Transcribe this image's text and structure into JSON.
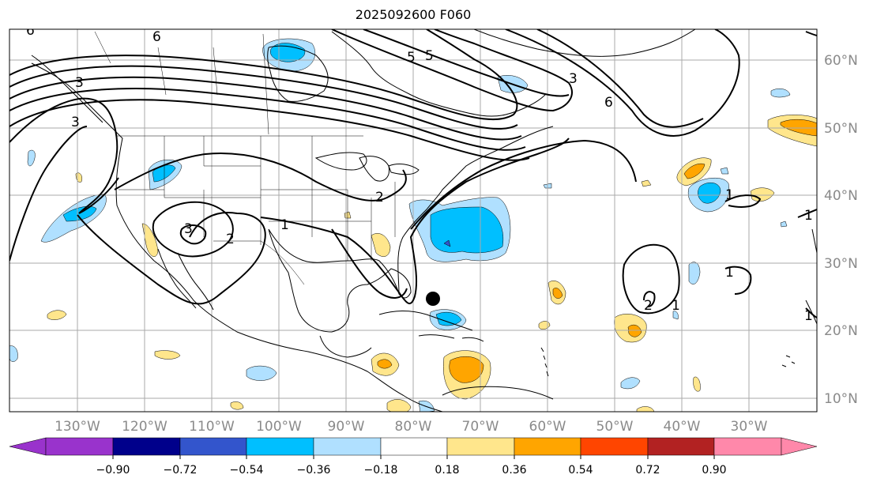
{
  "title": "2025092600 F060",
  "map": {
    "lon_range": [
      -140,
      -20
    ],
    "lat_range": [
      8,
      65
    ],
    "gridlines": true,
    "lon_ticks": [
      "130°W",
      "120°W",
      "110°W",
      "100°W",
      "90°W",
      "80°W",
      "70°W",
      "60°W",
      "50°W",
      "40°W",
      "30°W"
    ],
    "lat_ticks": [
      "60°N",
      "50°N",
      "40°N",
      "30°N",
      "20°N",
      "10°N"
    ],
    "contour_labels": [
      "6",
      "6",
      "3",
      "3",
      "5",
      "5",
      "3",
      "6",
      "3",
      "2",
      "2",
      "1",
      "1",
      "2",
      "1",
      "1",
      "1",
      "1"
    ],
    "marker": "storm-center-dot"
  },
  "colorbar": {
    "extend": "both",
    "colors": [
      "#9933cc",
      "#00008b",
      "#3355cc",
      "#00bfff",
      "#b0e0ff",
      "#ffffff",
      "#ffe68c",
      "#ffa500",
      "#ff4500",
      "#b22222",
      "#ff88aa"
    ],
    "tick_labels": [
      "−0.90",
      "−0.72",
      "−0.54",
      "−0.36",
      "−0.18",
      "0.18",
      "0.36",
      "0.54",
      "0.72",
      "0.90"
    ]
  }
}
